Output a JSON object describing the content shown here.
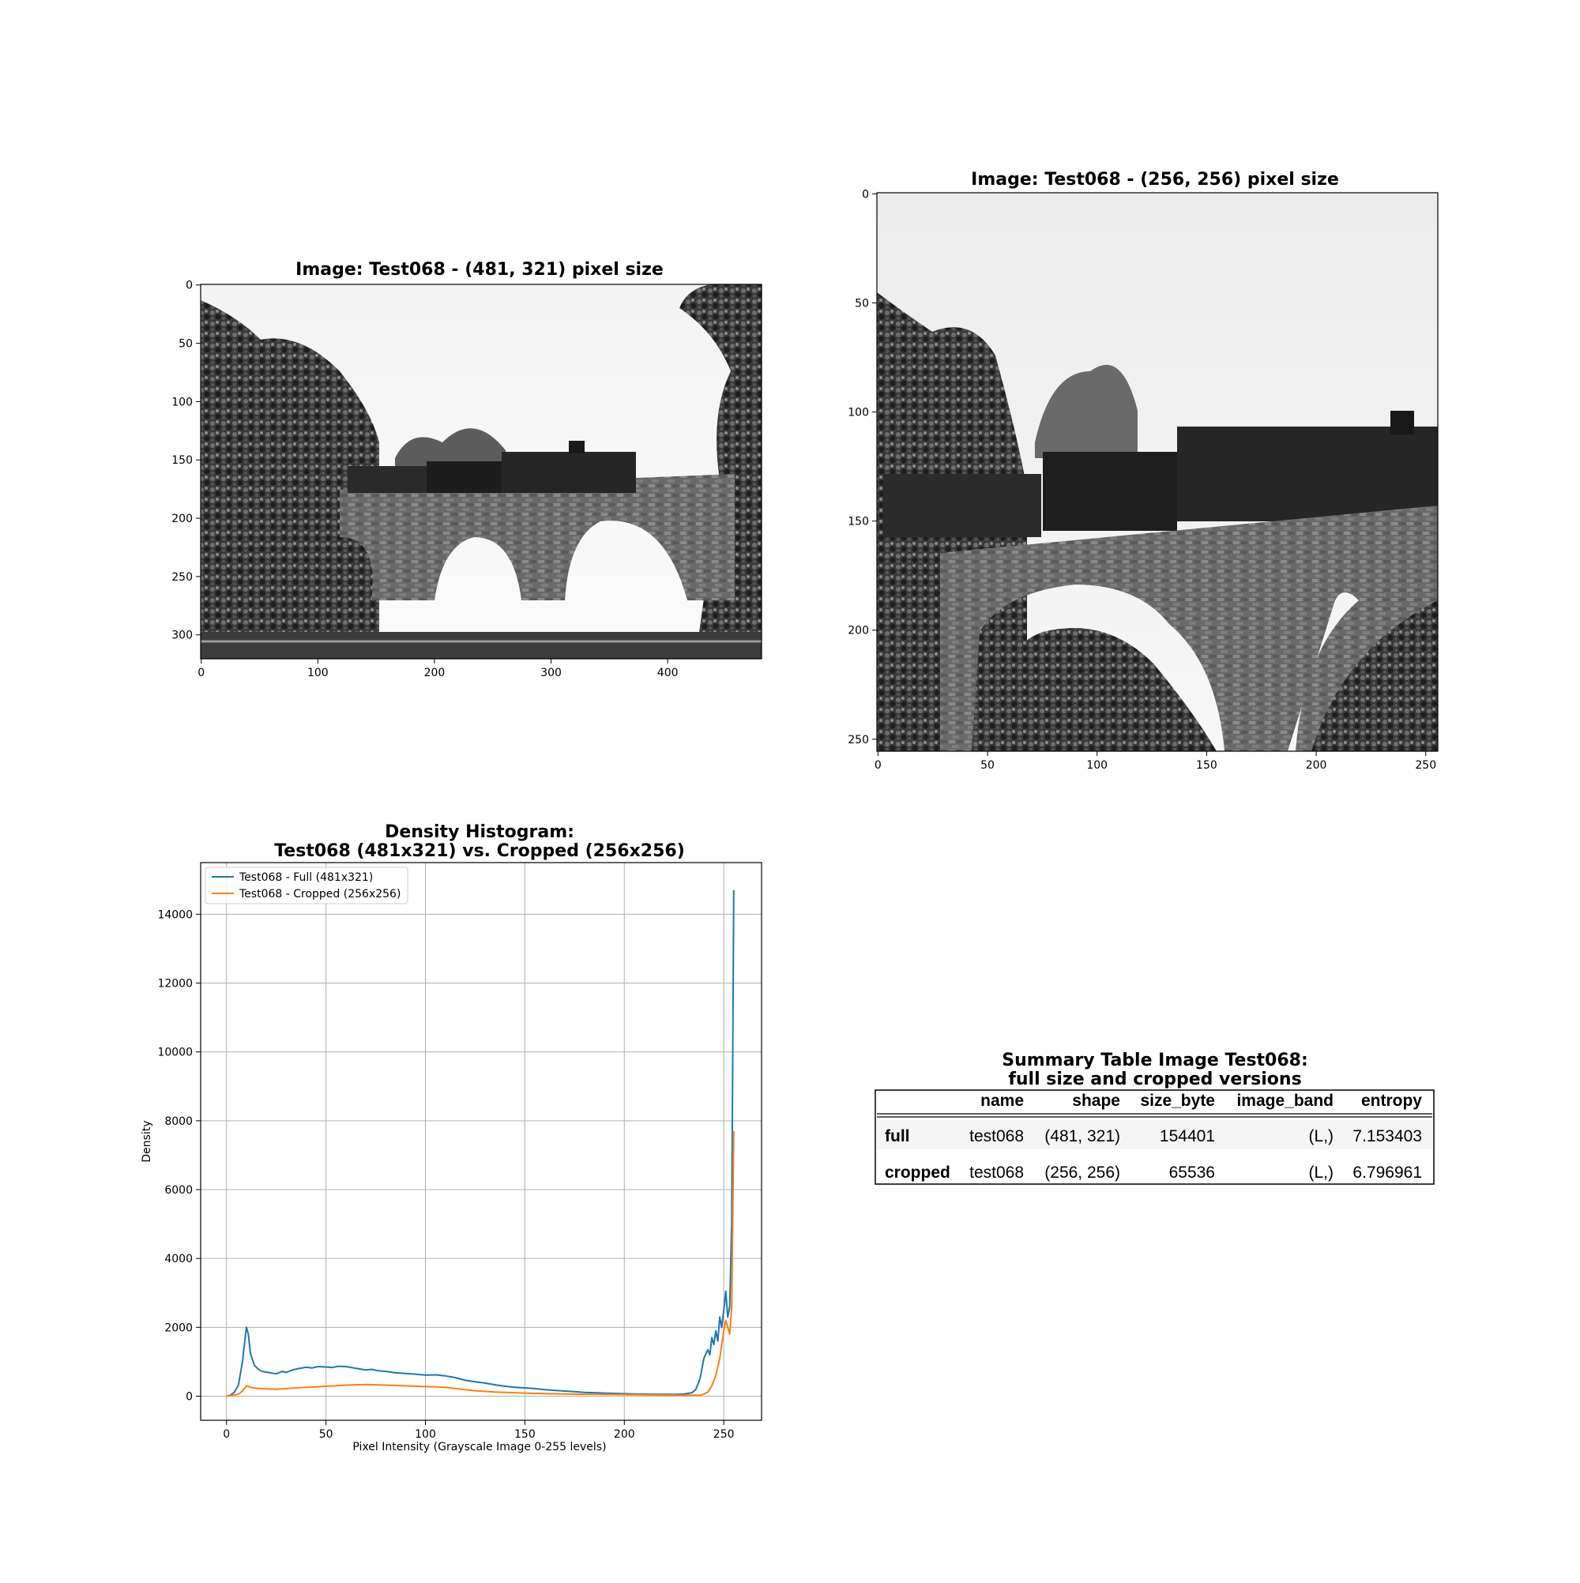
{
  "panel_full": {
    "title": "Image: Test068 - (481, 321) pixel size",
    "x_ticks": [
      "0",
      "100",
      "200",
      "300",
      "400"
    ],
    "y_ticks": [
      "0",
      "50",
      "100",
      "150",
      "200",
      "250",
      "300"
    ]
  },
  "panel_cropped": {
    "title": "Image: Test068 - (256, 256) pixel size",
    "x_ticks": [
      "0",
      "50",
      "100",
      "150",
      "200",
      "250"
    ],
    "y_ticks": [
      "0",
      "50",
      "100",
      "150",
      "200",
      "250"
    ]
  },
  "chart_data": {
    "type": "line",
    "title_line1": "Density Histogram:",
    "title_line2": "Test068 (481x321) vs. Cropped (256x256)",
    "xlabel": "Pixel Intensity (Grayscale Image 0-255 levels)",
    "ylabel": "Density",
    "xlim": [
      -13,
      269
    ],
    "ylim": [
      -700,
      15500
    ],
    "x_ticks": [
      0,
      50,
      100,
      150,
      200,
      250
    ],
    "y_ticks": [
      0,
      2000,
      4000,
      6000,
      8000,
      10000,
      12000,
      14000
    ],
    "grid": true,
    "legend_position": "top-left",
    "series": [
      {
        "name": "Test068 - Full (481x321)",
        "color": "#1f77b4",
        "points": [
          [
            0,
            0
          ],
          [
            2,
            30
          ],
          [
            4,
            120
          ],
          [
            6,
            320
          ],
          [
            8,
            1000
          ],
          [
            10,
            2000
          ],
          [
            11,
            1800
          ],
          [
            12,
            1250
          ],
          [
            14,
            900
          ],
          [
            16,
            780
          ],
          [
            18,
            720
          ],
          [
            20,
            700
          ],
          [
            22,
            680
          ],
          [
            25,
            650
          ],
          [
            28,
            720
          ],
          [
            30,
            690
          ],
          [
            33,
            760
          ],
          [
            36,
            800
          ],
          [
            40,
            840
          ],
          [
            43,
            820
          ],
          [
            46,
            860
          ],
          [
            50,
            850
          ],
          [
            53,
            830
          ],
          [
            56,
            870
          ],
          [
            60,
            860
          ],
          [
            63,
            830
          ],
          [
            66,
            800
          ],
          [
            70,
            760
          ],
          [
            73,
            780
          ],
          [
            76,
            740
          ],
          [
            80,
            720
          ],
          [
            85,
            680
          ],
          [
            90,
            660
          ],
          [
            95,
            640
          ],
          [
            100,
            610
          ],
          [
            105,
            620
          ],
          [
            110,
            590
          ],
          [
            115,
            540
          ],
          [
            120,
            460
          ],
          [
            125,
            420
          ],
          [
            130,
            380
          ],
          [
            135,
            330
          ],
          [
            140,
            290
          ],
          [
            145,
            260
          ],
          [
            150,
            240
          ],
          [
            155,
            220
          ],
          [
            160,
            190
          ],
          [
            165,
            170
          ],
          [
            170,
            150
          ],
          [
            175,
            130
          ],
          [
            180,
            110
          ],
          [
            185,
            100
          ],
          [
            190,
            90
          ],
          [
            195,
            80
          ],
          [
            200,
            70
          ],
          [
            205,
            65
          ],
          [
            210,
            60
          ],
          [
            215,
            55
          ],
          [
            220,
            55
          ],
          [
            225,
            50
          ],
          [
            230,
            60
          ],
          [
            234,
            100
          ],
          [
            236,
            200
          ],
          [
            238,
            500
          ],
          [
            240,
            1100
          ],
          [
            242,
            1350
          ],
          [
            243,
            1200
          ],
          [
            244,
            1700
          ],
          [
            245,
            1500
          ],
          [
            246,
            1900
          ],
          [
            247,
            1600
          ],
          [
            248,
            2300
          ],
          [
            249,
            2000
          ],
          [
            250,
            2500
          ],
          [
            251,
            3050
          ],
          [
            252,
            2300
          ],
          [
            253,
            2600
          ],
          [
            254,
            5000
          ],
          [
            255,
            14700
          ]
        ]
      },
      {
        "name": "Test068 - Cropped (256x256)",
        "color": "#ff7f0e",
        "points": [
          [
            0,
            0
          ],
          [
            3,
            20
          ],
          [
            6,
            60
          ],
          [
            8,
            150
          ],
          [
            10,
            300
          ],
          [
            12,
            260
          ],
          [
            15,
            230
          ],
          [
            20,
            210
          ],
          [
            25,
            200
          ],
          [
            30,
            220
          ],
          [
            35,
            240
          ],
          [
            40,
            260
          ],
          [
            45,
            270
          ],
          [
            50,
            290
          ],
          [
            55,
            300
          ],
          [
            60,
            320
          ],
          [
            65,
            330
          ],
          [
            70,
            340
          ],
          [
            75,
            330
          ],
          [
            80,
            320
          ],
          [
            85,
            310
          ],
          [
            90,
            300
          ],
          [
            95,
            290
          ],
          [
            100,
            280
          ],
          [
            105,
            270
          ],
          [
            110,
            260
          ],
          [
            115,
            220
          ],
          [
            120,
            190
          ],
          [
            125,
            160
          ],
          [
            130,
            140
          ],
          [
            135,
            120
          ],
          [
            140,
            110
          ],
          [
            145,
            100
          ],
          [
            150,
            90
          ],
          [
            155,
            80
          ],
          [
            160,
            75
          ],
          [
            170,
            65
          ],
          [
            180,
            55
          ],
          [
            190,
            50
          ],
          [
            200,
            45
          ],
          [
            210,
            40
          ],
          [
            220,
            35
          ],
          [
            230,
            30
          ],
          [
            238,
            30
          ],
          [
            240,
            60
          ],
          [
            242,
            120
          ],
          [
            244,
            300
          ],
          [
            246,
            600
          ],
          [
            248,
            1100
          ],
          [
            249,
            1500
          ],
          [
            250,
            1900
          ],
          [
            251,
            2200
          ],
          [
            252,
            2000
          ],
          [
            253,
            1800
          ],
          [
            254,
            2600
          ],
          [
            255,
            7700
          ]
        ]
      }
    ]
  },
  "summary_table": {
    "title_line1": "Summary Table Image Test068:",
    "title_line2": "full size and cropped versions",
    "columns": [
      "",
      "name",
      "shape",
      "size_byte",
      "image_band",
      "entropy"
    ],
    "rows": [
      [
        "full",
        "test068",
        "(481, 321)",
        "154401",
        "(L,)",
        "7.153403"
      ],
      [
        "cropped",
        "test068",
        "(256, 256)",
        "65536",
        "(L,)",
        "6.796961"
      ]
    ]
  }
}
